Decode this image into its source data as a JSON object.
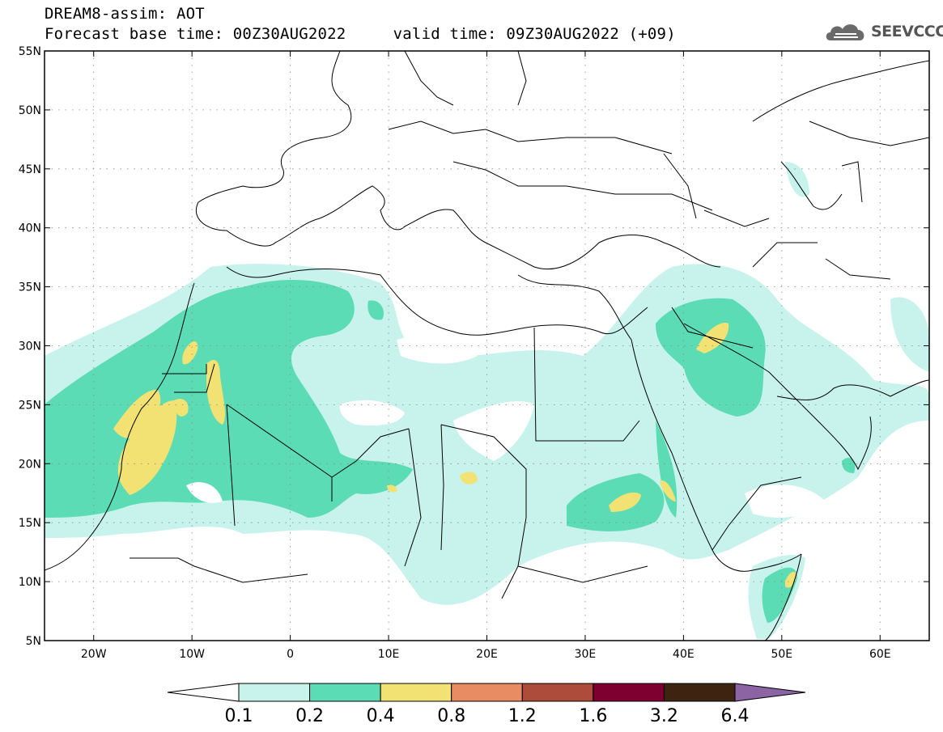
{
  "header": {
    "model_line": "DREAM8-assim: AOT",
    "base_label": "Forecast base time:",
    "base_time": "00Z30AUG2022",
    "valid_label": "valid time:",
    "valid_time": "09Z30AUG2022 (+09)",
    "logo_text": "SEEVCCC"
  },
  "map": {
    "lon_range": [
      -25,
      65
    ],
    "lat_range": [
      5,
      55
    ],
    "lon_ticks": [
      {
        "value": -20,
        "label": "20W"
      },
      {
        "value": -10,
        "label": "10W"
      },
      {
        "value": 0,
        "label": "0"
      },
      {
        "value": 10,
        "label": "10E"
      },
      {
        "value": 20,
        "label": "20E"
      },
      {
        "value": 30,
        "label": "30E"
      },
      {
        "value": 40,
        "label": "40E"
      },
      {
        "value": 50,
        "label": "50E"
      },
      {
        "value": 60,
        "label": "60E"
      }
    ],
    "lat_ticks": [
      {
        "value": 55,
        "label": "55N"
      },
      {
        "value": 50,
        "label": "50N"
      },
      {
        "value": 45,
        "label": "45N"
      },
      {
        "value": 40,
        "label": "40N"
      },
      {
        "value": 35,
        "label": "35N"
      },
      {
        "value": 30,
        "label": "30N"
      },
      {
        "value": 25,
        "label": "25N"
      },
      {
        "value": 20,
        "label": "20N"
      },
      {
        "value": 15,
        "label": "15N"
      },
      {
        "value": 10,
        "label": "10N"
      },
      {
        "value": 5,
        "label": "5N"
      }
    ],
    "grid": true
  },
  "colorbar": {
    "levels": [
      "0.1",
      "0.2",
      "0.4",
      "0.8",
      "1.2",
      "1.6",
      "3.2",
      "6.4"
    ],
    "colors": [
      "#ffffff",
      "#c8f2ec",
      "#5cdcb4",
      "#f2e274",
      "#e88c64",
      "#ae4c3c",
      "#7e0030",
      "#3e2410",
      "#8c64a4"
    ]
  }
}
